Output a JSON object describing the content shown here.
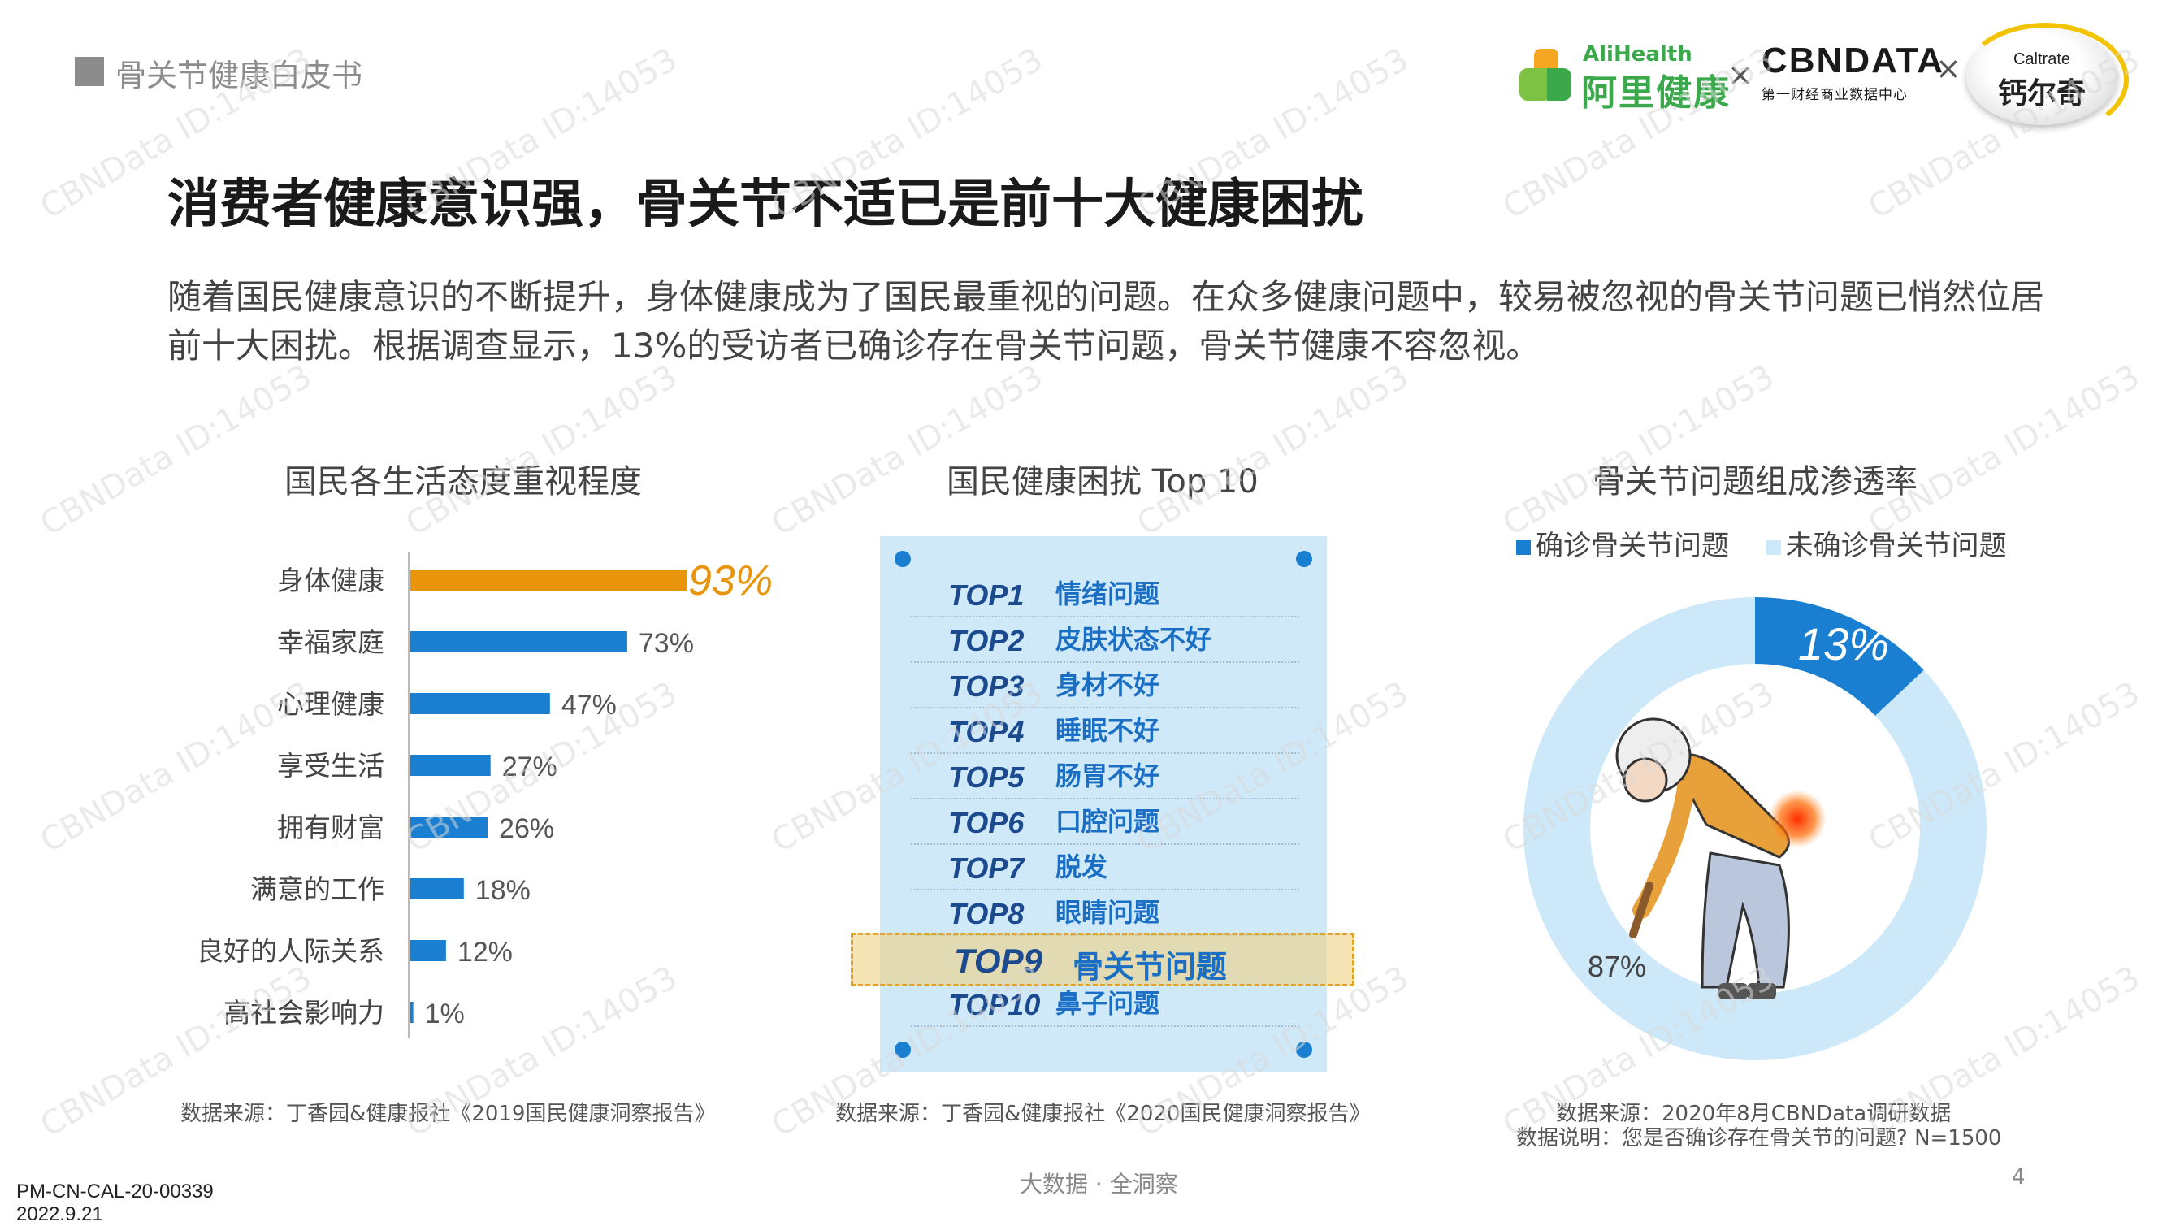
{
  "header": {
    "doc_label": "骨关节健康白皮书",
    "logos": {
      "alihealth_en": "AliHealth",
      "alihealth_cn": "阿里健康",
      "separator": "×",
      "cbndata": "CBNDATA",
      "cbndata_sub": "第一财经商业数据中心",
      "caltrate_en": "Caltrate",
      "caltrate_cn": "钙尔奇"
    }
  },
  "title": "消费者健康意识强，骨关节不适已是前十大健康困扰",
  "intro": "随着国民健康意识的不断提升，身体健康成为了国民最重视的问题。在众多健康问题中，较易被忽视的骨关节问题已悄然位居前十大困扰。根据调查显示，13%的受访者已确诊存在骨关节问题，骨关节健康不容忽视。",
  "chart_data": [
    {
      "type": "bar",
      "orientation": "horizontal",
      "title": "国民各生活态度重视程度",
      "categories": [
        "身体健康",
        "幸福家庭",
        "心理健康",
        "享受生活",
        "拥有财富",
        "满意的工作",
        "良好的人际关系",
        "高社会影响力"
      ],
      "values": [
        93,
        73,
        47,
        27,
        26,
        18,
        12,
        1
      ],
      "value_labels": [
        "93%",
        "73%",
        "47%",
        "27%",
        "26%",
        "18%",
        "12%",
        "1%"
      ],
      "unit": "%",
      "highlight_index": 0,
      "colors": {
        "highlight": "#e8950c",
        "bar": "#1a7fd0"
      },
      "source": "数据来源：丁香园&健康报社《2019国民健康洞察报告》"
    },
    {
      "type": "table",
      "title": "国民健康困扰 Top 10",
      "rows": [
        {
          "rank": "TOP1",
          "issue": "情绪问题"
        },
        {
          "rank": "TOP2",
          "issue": "皮肤状态不好"
        },
        {
          "rank": "TOP3",
          "issue": "身材不好"
        },
        {
          "rank": "TOP4",
          "issue": "睡眠不好"
        },
        {
          "rank": "TOP5",
          "issue": "肠胃不好"
        },
        {
          "rank": "TOP6",
          "issue": "口腔问题"
        },
        {
          "rank": "TOP7",
          "issue": "脱发"
        },
        {
          "rank": "TOP8",
          "issue": "眼睛问题"
        },
        {
          "rank": "TOP9",
          "issue": "骨关节问题"
        },
        {
          "rank": "TOP10",
          "issue": "鼻子问题"
        }
      ],
      "highlight_index": 8,
      "source": "数据来源：丁香园&健康报社《2020国民健康洞察报告》"
    },
    {
      "type": "pie",
      "style": "donut",
      "title": "骨关节问题组成渗透率",
      "categories": [
        "确诊骨关节问题",
        "未确诊骨关节问题"
      ],
      "values": [
        13,
        87
      ],
      "value_labels": [
        "13%",
        "87%"
      ],
      "colors": [
        "#1a7fd0",
        "#cde8f8"
      ],
      "legend": "top",
      "source": "数据来源：2020年8月CBNData调研数据",
      "note": "数据说明：您是否确诊存在骨关节的问题? N=1500"
    }
  ],
  "footer": {
    "center": "大数据 · 全洞察",
    "page": "4",
    "doc_code": "PM-CN-CAL-20-00339",
    "doc_date": "2022.9.21"
  },
  "watermark": "CBNData ID:14053"
}
